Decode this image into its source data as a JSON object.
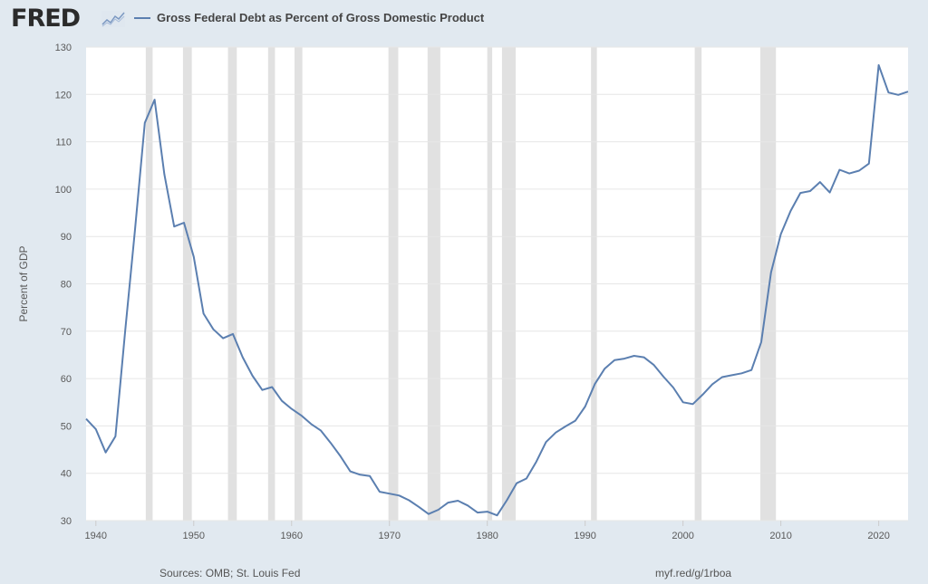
{
  "header": {
    "logo_text": "FRED",
    "logo_icon": "spark-line-icon",
    "legend_label": "Gross Federal Debt as Percent of Gross Domestic Product"
  },
  "footer": {
    "sources": "Sources: OMB; St. Louis Fed",
    "short_url": "myf.red/g/1rboa"
  },
  "colors": {
    "line": "#5b7fb0",
    "recession": "#e1e1e1",
    "plot_bg": "#ffffff",
    "page_bg": "#e1e9f0"
  },
  "chart_data": {
    "type": "line",
    "title": "",
    "xlabel": "",
    "ylabel": "Percent of GDP",
    "xlim": [
      1939,
      2023
    ],
    "ylim": [
      30,
      130
    ],
    "grid": true,
    "legend_placement": "top-left",
    "x_ticks": [
      1940,
      1950,
      1960,
      1970,
      1980,
      1990,
      2000,
      2010,
      2020
    ],
    "y_ticks": [
      30,
      40,
      50,
      60,
      70,
      80,
      90,
      100,
      110,
      120,
      130
    ],
    "recession_shading": true,
    "series": [
      {
        "name": "Gross Federal Debt as Percent of Gross Domestic Product",
        "x": [
          1939,
          1940,
          1941,
          1942,
          1943,
          1944,
          1945,
          1946,
          1947,
          1948,
          1949,
          1950,
          1951,
          1952,
          1953,
          1954,
          1955,
          1956,
          1957,
          1958,
          1959,
          1960,
          1961,
          1962,
          1963,
          1964,
          1965,
          1966,
          1967,
          1968,
          1969,
          1970,
          1971,
          1972,
          1973,
          1974,
          1975,
          1976,
          1977,
          1978,
          1979,
          1980,
          1981,
          1982,
          1983,
          1984,
          1985,
          1986,
          1987,
          1988,
          1989,
          1990,
          1991,
          1992,
          1993,
          1994,
          1995,
          1996,
          1997,
          1998,
          1999,
          2000,
          2001,
          2002,
          2003,
          2004,
          2005,
          2006,
          2007,
          2008,
          2009,
          2010,
          2011,
          2012,
          2013,
          2014,
          2015,
          2016,
          2017,
          2018,
          2019,
          2020,
          2021,
          2022,
          2023
        ],
        "values": [
          51.5,
          49.3,
          44.4,
          47.8,
          70.2,
          91.5,
          114.0,
          118.9,
          103.1,
          92.1,
          92.9,
          85.7,
          73.7,
          70.4,
          68.5,
          69.4,
          64.5,
          60.6,
          57.6,
          58.2,
          55.3,
          53.6,
          52.2,
          50.4,
          49.0,
          46.4,
          43.6,
          40.4,
          39.7,
          39.4,
          36.1,
          35.7,
          35.3,
          34.3,
          32.9,
          31.4,
          32.3,
          33.8,
          34.2,
          33.2,
          31.7,
          31.9,
          31.1,
          34.3,
          37.9,
          38.9,
          42.4,
          46.6,
          48.6,
          49.9,
          51.1,
          54.1,
          58.9,
          62.1,
          63.9,
          64.2,
          64.8,
          64.5,
          62.9,
          60.4,
          58.1,
          55.0,
          54.6,
          56.6,
          58.8,
          60.3,
          60.7,
          61.1,
          61.8,
          67.7,
          82.4,
          90.5,
          95.4,
          99.2,
          99.6,
          101.5,
          99.3,
          104.1,
          103.3,
          103.9,
          105.4,
          126.2,
          120.4,
          119.9,
          120.6
        ]
      }
    ]
  }
}
